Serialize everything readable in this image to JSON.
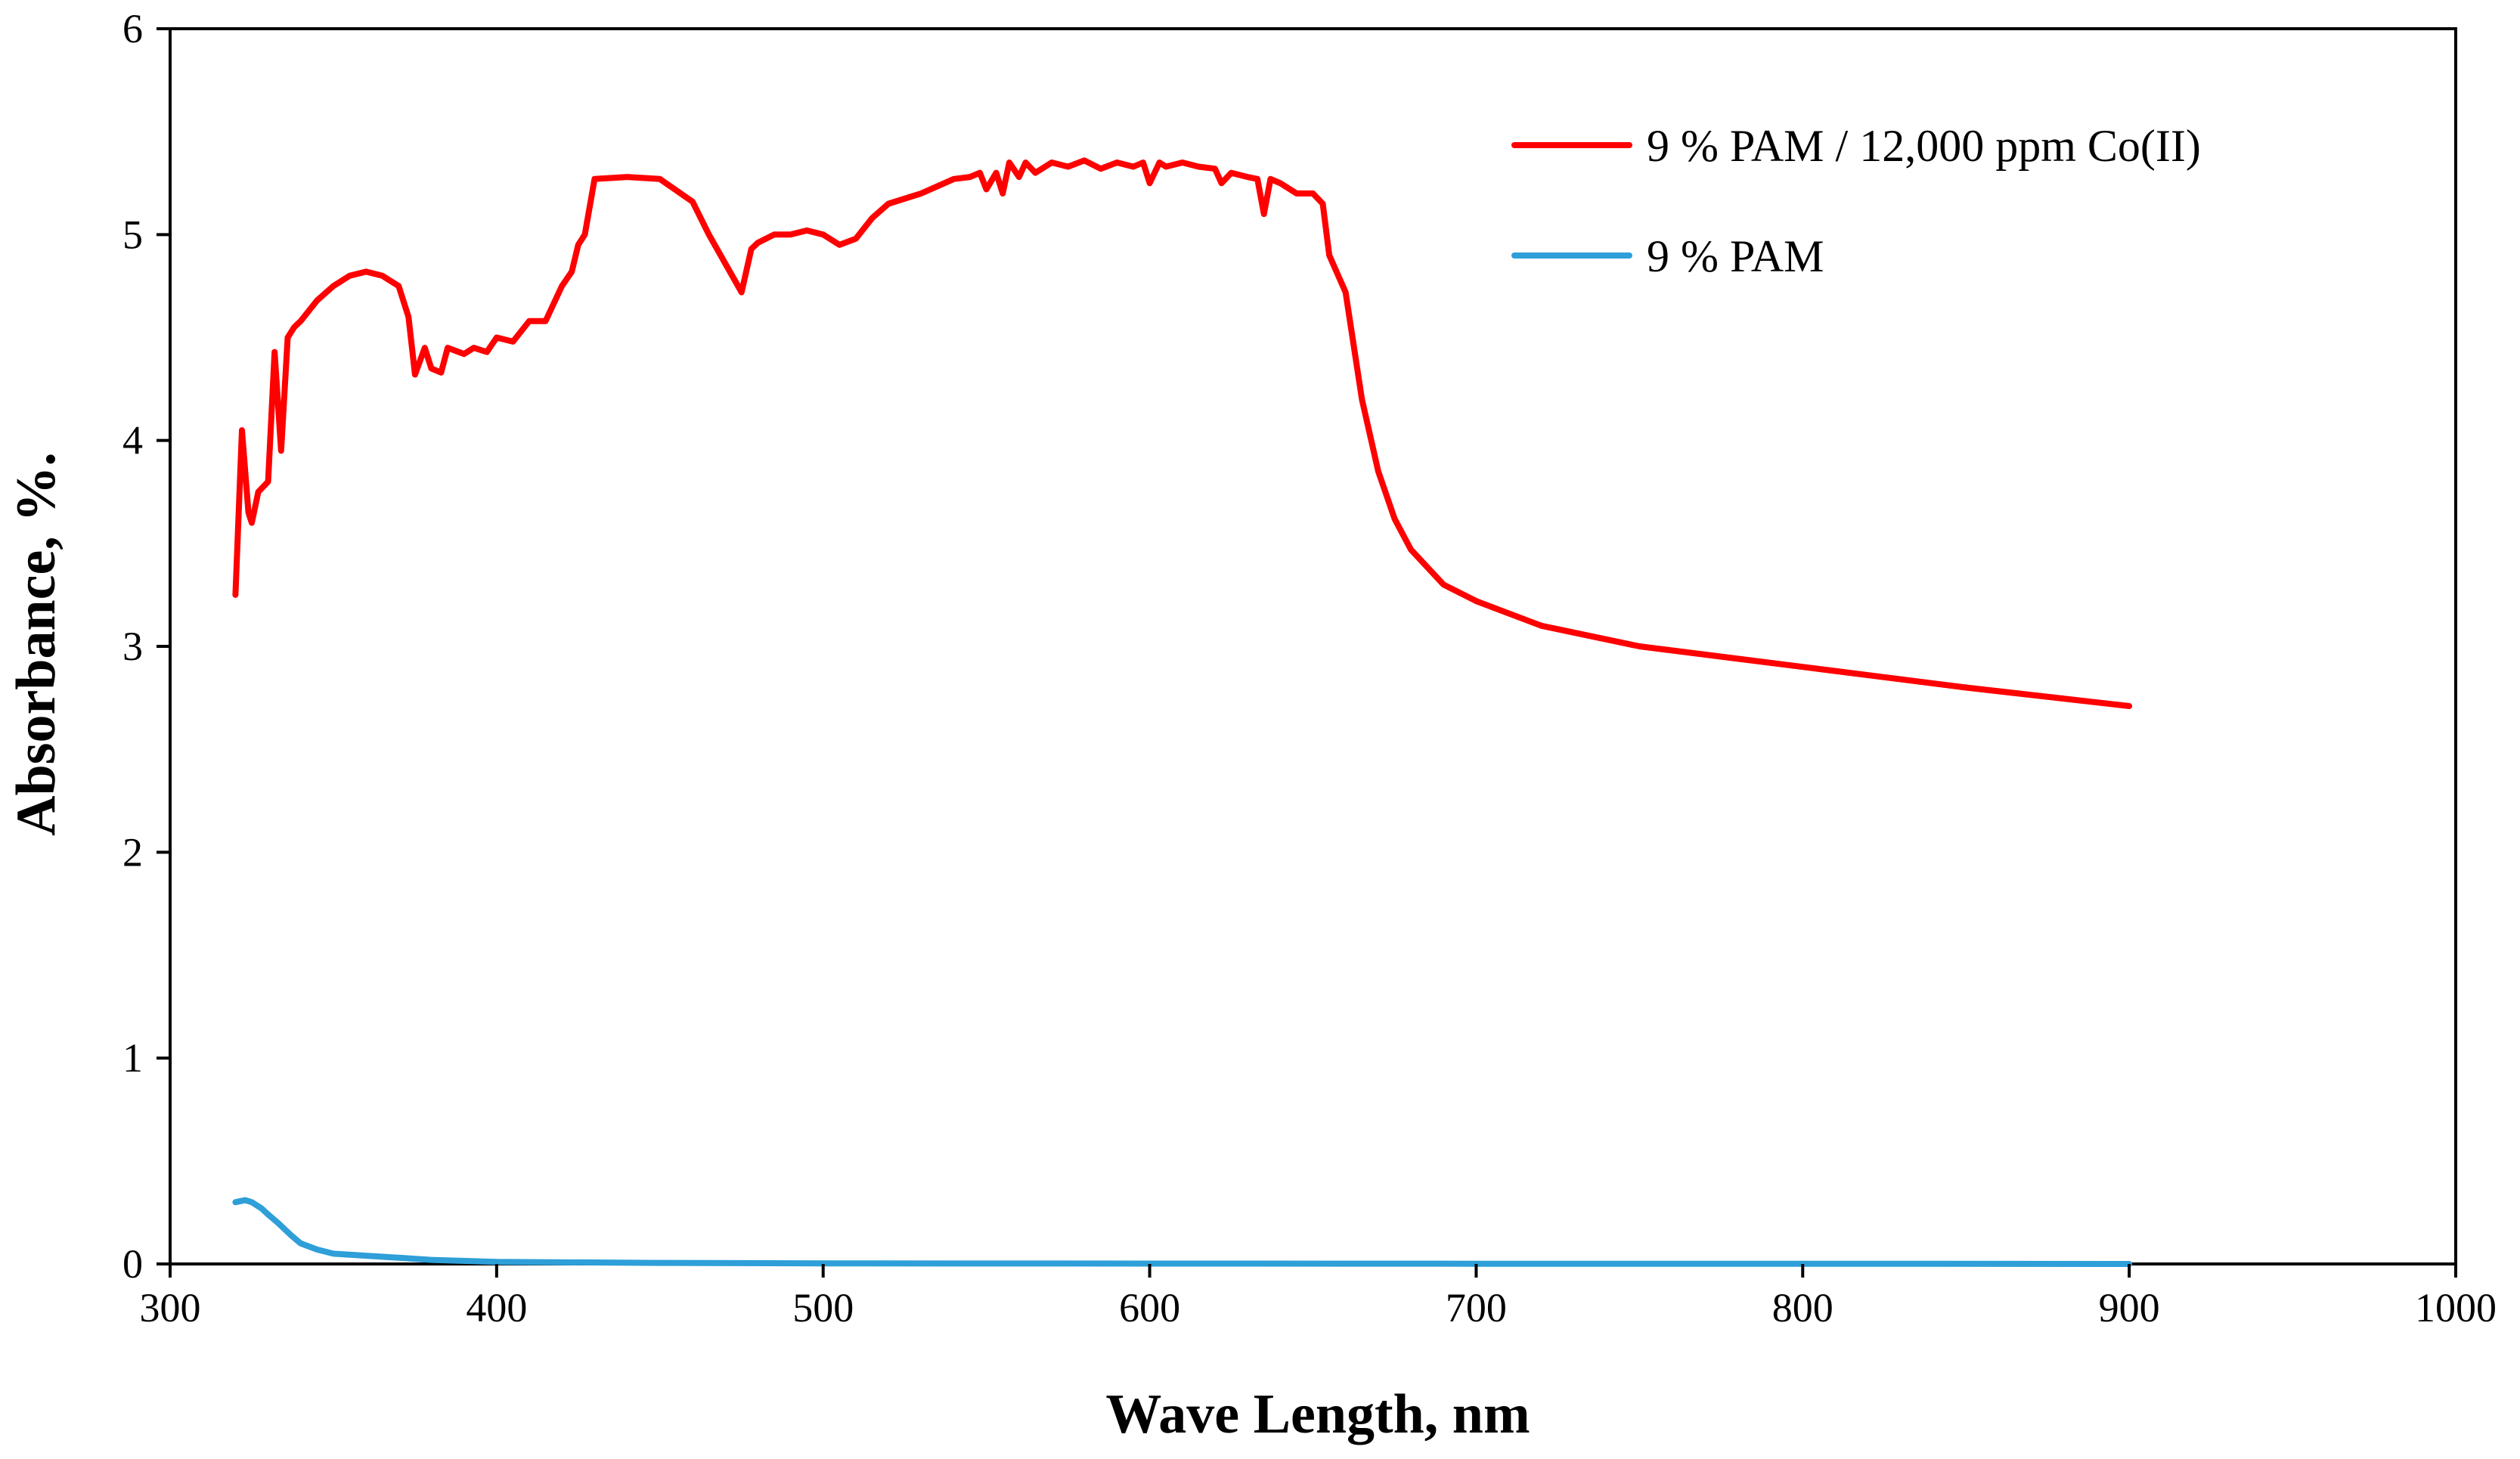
{
  "chart_data": {
    "type": "line",
    "title": "",
    "xlabel": "Wave Length, nm",
    "ylabel": "Absorbance, %.",
    "xlim": [
      300,
      1000
    ],
    "ylim": [
      0,
      6
    ],
    "xticks": [
      300,
      400,
      500,
      600,
      700,
      800,
      900,
      1000
    ],
    "yticks": [
      0,
      1,
      2,
      3,
      4,
      5,
      6
    ],
    "grid": false,
    "legend_position": "top-right",
    "series": [
      {
        "name": "9 % PAM / 12,000 ppm Co(II)",
        "color": "#ff0000",
        "x": [
          320,
          322,
          324,
          325,
          327,
          330,
          332,
          334,
          336,
          338,
          340,
          345,
          350,
          355,
          360,
          365,
          370,
          373,
          375,
          378,
          380,
          383,
          385,
          390,
          393,
          397,
          400,
          405,
          410,
          413,
          415,
          420,
          423,
          425,
          427,
          430,
          440,
          450,
          460,
          465,
          470,
          475,
          478,
          480,
          485,
          490,
          495,
          500,
          505,
          510,
          515,
          520,
          530,
          540,
          545,
          548,
          550,
          553,
          555,
          557,
          560,
          562,
          565,
          570,
          575,
          580,
          585,
          590,
          595,
          598,
          600,
          603,
          605,
          610,
          615,
          620,
          622,
          625,
          630,
          633,
          635,
          637,
          640,
          645,
          650,
          653,
          655,
          660,
          665,
          670,
          675,
          680,
          690,
          700,
          720,
          750,
          800,
          850,
          900
        ],
        "y": [
          3.25,
          4.05,
          3.65,
          3.6,
          3.75,
          3.8,
          4.43,
          3.95,
          4.5,
          4.55,
          4.58,
          4.68,
          4.75,
          4.8,
          4.82,
          4.8,
          4.75,
          4.6,
          4.32,
          4.45,
          4.35,
          4.33,
          4.45,
          4.42,
          4.45,
          4.43,
          4.5,
          4.48,
          4.58,
          4.58,
          4.58,
          4.75,
          4.82,
          4.95,
          5.0,
          5.27,
          5.28,
          5.27,
          5.16,
          5.0,
          4.86,
          4.72,
          4.93,
          4.96,
          5.0,
          5.0,
          5.02,
          5.0,
          4.95,
          4.98,
          5.08,
          5.15,
          5.2,
          5.27,
          5.28,
          5.3,
          5.22,
          5.3,
          5.2,
          5.35,
          5.28,
          5.35,
          5.3,
          5.35,
          5.33,
          5.36,
          5.32,
          5.35,
          5.33,
          5.35,
          5.25,
          5.35,
          5.33,
          5.35,
          5.33,
          5.32,
          5.25,
          5.3,
          5.28,
          5.27,
          5.1,
          5.27,
          5.25,
          5.2,
          5.2,
          5.15,
          4.9,
          4.72,
          4.2,
          3.85,
          3.62,
          3.47,
          3.3,
          3.22,
          3.1,
          3.0,
          2.9,
          2.8,
          2.71
        ]
      },
      {
        "name": "9 % PAM",
        "color": "#2e9fd8",
        "x": [
          320,
          323,
          325,
          328,
          330,
          333,
          337,
          340,
          345,
          350,
          360,
          370,
          380,
          400,
          450,
          500,
          600,
          700,
          800,
          900
        ],
        "y": [
          0.3,
          0.31,
          0.3,
          0.27,
          0.24,
          0.2,
          0.14,
          0.1,
          0.07,
          0.05,
          0.04,
          0.03,
          0.02,
          0.01,
          0.005,
          0.003,
          0.002,
          0.001,
          0.001,
          0.0
        ]
      }
    ]
  }
}
